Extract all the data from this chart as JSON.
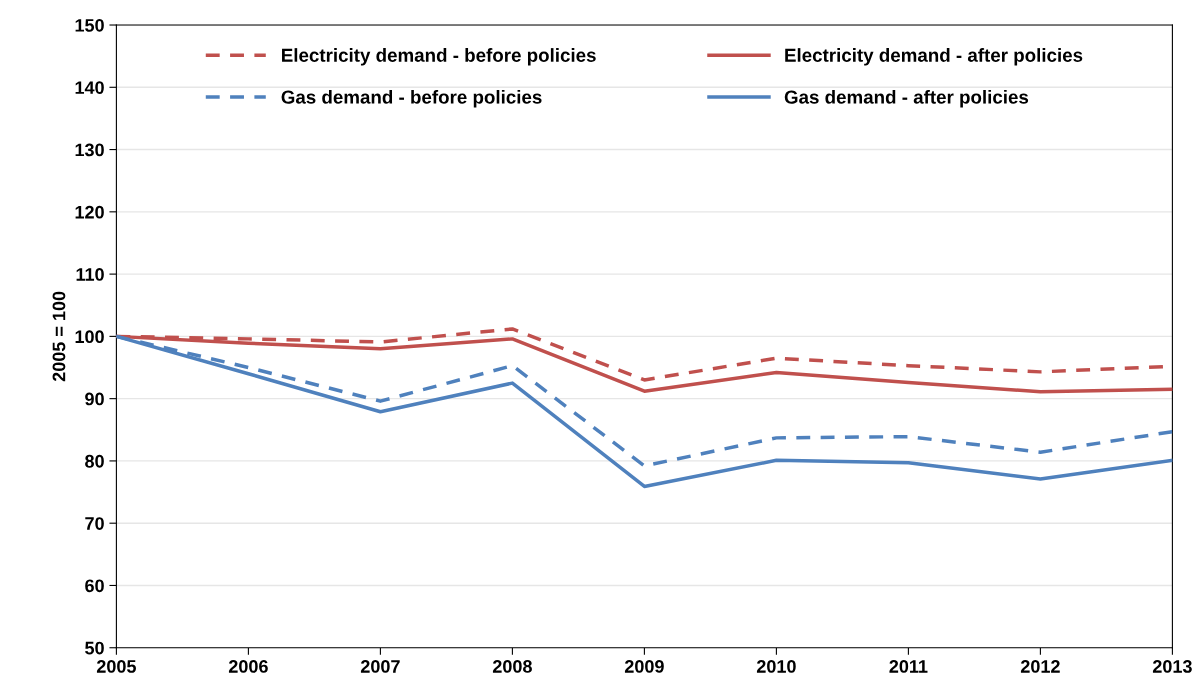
{
  "chart_data": {
    "type": "line",
    "ylabel": "2005 = 100",
    "x": [
      2005,
      2006,
      2007,
      2008,
      2009,
      2010,
      2011,
      2012,
      2013
    ],
    "series": [
      {
        "name": "Electricity demand - before policies",
        "color": "#c0504d",
        "line_style": "dashed",
        "values": [
          100,
          99.6,
          99.1,
          101.2,
          93.0,
          96.5,
          95.3,
          94.3,
          95.2
        ]
      },
      {
        "name": "Electricity demand - after policies",
        "color": "#c0504d",
        "line_style": "solid",
        "values": [
          100,
          98.9,
          98.0,
          99.6,
          91.2,
          94.2,
          92.6,
          91.1,
          91.5
        ]
      },
      {
        "name": "Gas demand - before policies",
        "color": "#4f81bd",
        "line_style": "dashed",
        "values": [
          100,
          95.0,
          89.6,
          95.3,
          79.2,
          83.7,
          83.9,
          81.4,
          84.7
        ]
      },
      {
        "name": "Gas demand - after policies",
        "color": "#4f81bd",
        "line_style": "solid",
        "values": [
          100,
          94.0,
          87.9,
          92.5,
          75.9,
          80.1,
          79.7,
          77.1,
          80.1
        ]
      }
    ],
    "xlim": [
      2005,
      2013
    ],
    "xticks": [
      2005,
      2006,
      2007,
      2008,
      2009,
      2010,
      2011,
      2012,
      2013
    ],
    "ylim": [
      50,
      150
    ],
    "yticks": [
      50,
      60,
      70,
      80,
      90,
      100,
      110,
      120,
      130,
      140,
      150
    ],
    "grid": "y",
    "legend": "top",
    "marker": "none"
  }
}
